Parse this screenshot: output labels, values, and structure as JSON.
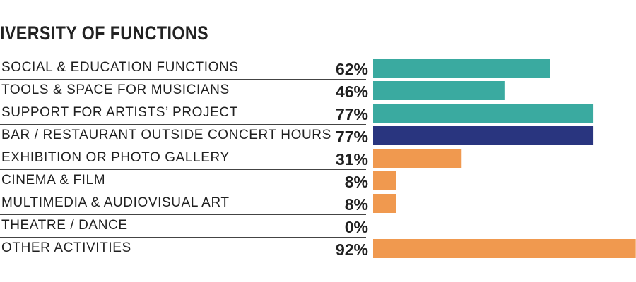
{
  "title": "IVERSITY OF FUNCTIONS",
  "chart_data": {
    "type": "bar",
    "orientation": "horizontal",
    "title": "IVERSITY OF FUNCTIONS",
    "xlim": [
      0,
      100
    ],
    "categories": [
      "SOCIAL & EDUCATION FUNCTIONS",
      "TOOLS & SPACE FOR MUSICIANS",
      "SUPPORT FOR ARTISTS’ PROJECT",
      "BAR / RESTAURANT OUTSIDE CONCERT HOURS",
      "EXHIBITION OR PHOTO GALLERY",
      "CINEMA & FILM",
      "MULTIMEDIA & AUDIOVISUAL ART",
      "THEATRE / DANCE",
      "OTHER ACTIVITIES"
    ],
    "values": [
      62,
      46,
      77,
      77,
      31,
      8,
      8,
      0,
      92
    ],
    "value_labels": [
      "62%",
      "46%",
      "77%",
      "77%",
      "31%",
      "8%",
      "8%",
      "0%",
      "92%"
    ],
    "bar_colors": [
      "#3aaaa0",
      "#3aaaa0",
      "#3aaaa0",
      "#29357f",
      "#f0994f",
      "#f0994f",
      "#f0994f",
      "#f0994f",
      "#f0994f"
    ],
    "grid": false,
    "legend": "none"
  }
}
